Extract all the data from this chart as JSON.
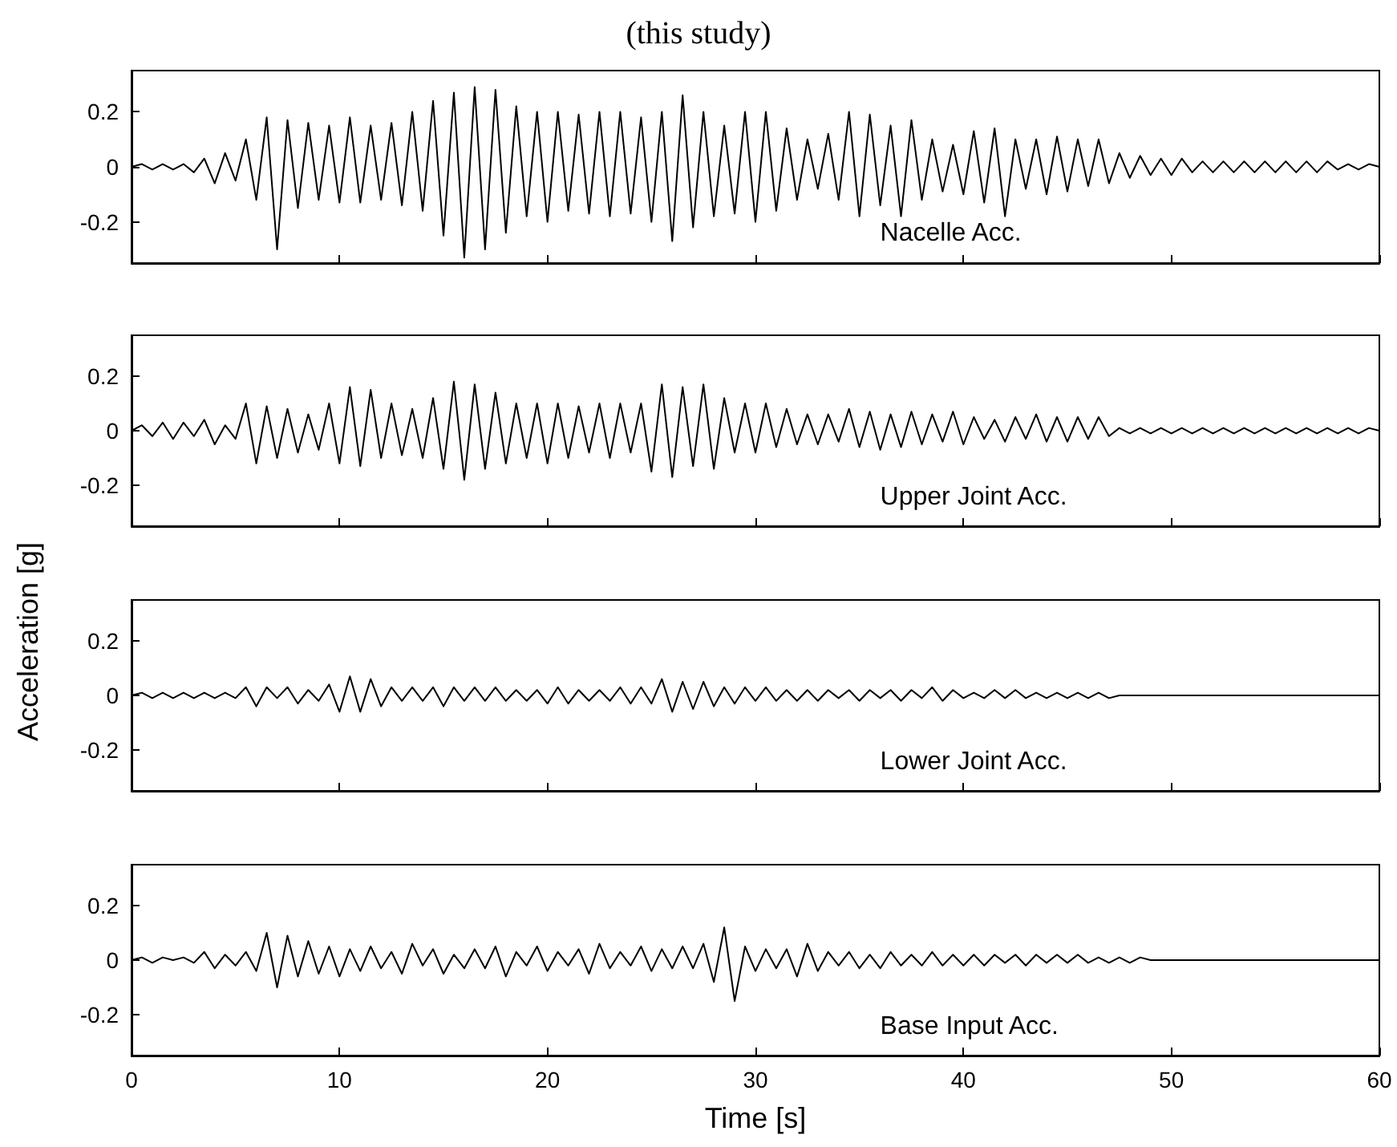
{
  "chart_data": [
    {
      "type": "line",
      "title": "(this study)",
      "annotations": [
        "Nacelle Acc."
      ],
      "xlim": [
        0,
        60
      ],
      "xticks": [
        0,
        10,
        20,
        30,
        40,
        50,
        60
      ],
      "ylim": [
        -0.35,
        0.35
      ],
      "yticks": [
        -0.2,
        0,
        0.2
      ],
      "tick_labels": "y",
      "grid": false,
      "x": [
        0,
        0.5,
        1,
        1.5,
        2,
        2.5,
        3,
        3.5,
        4,
        4.5,
        5,
        5.5,
        6,
        6.5,
        7,
        7.5,
        8,
        8.5,
        9,
        9.5,
        10,
        10.5,
        11,
        11.5,
        12,
        12.5,
        13,
        13.5,
        14,
        14.5,
        15,
        15.5,
        16,
        16.5,
        17,
        17.5,
        18,
        18.5,
        19,
        19.5,
        20,
        20.5,
        21,
        21.5,
        22,
        22.5,
        23,
        23.5,
        24,
        24.5,
        25,
        25.5,
        26,
        26.5,
        27,
        27.5,
        28,
        28.5,
        29,
        29.5,
        30,
        30.5,
        31,
        31.5,
        32,
        32.5,
        33,
        33.5,
        34,
        34.5,
        35,
        35.5,
        36,
        36.5,
        37,
        37.5,
        38,
        38.5,
        39,
        39.5,
        40,
        40.5,
        41,
        41.5,
        42,
        42.5,
        43,
        43.5,
        44,
        44.5,
        45,
        45.5,
        46,
        46.5,
        47,
        47.5,
        48,
        48.5,
        49,
        49.5,
        50,
        50.5,
        51,
        51.5,
        52,
        52.5,
        53,
        53.5,
        54,
        54.5,
        55,
        55.5,
        56,
        56.5,
        57,
        57.5,
        58,
        58.5,
        59,
        59.5,
        60
      ],
      "series": [
        {
          "color": "#000000",
          "values": [
            0,
            0.01,
            -0.01,
            0.01,
            -0.01,
            0.01,
            -0.02,
            0.03,
            -0.06,
            0.05,
            -0.05,
            0.1,
            -0.12,
            0.18,
            -0.3,
            0.17,
            -0.15,
            0.16,
            -0.12,
            0.15,
            -0.13,
            0.18,
            -0.13,
            0.15,
            -0.12,
            0.16,
            -0.14,
            0.2,
            -0.16,
            0.24,
            -0.25,
            0.27,
            -0.33,
            0.29,
            -0.3,
            0.28,
            -0.24,
            0.22,
            -0.18,
            0.2,
            -0.2,
            0.2,
            -0.16,
            0.19,
            -0.17,
            0.2,
            -0.18,
            0.2,
            -0.17,
            0.18,
            -0.2,
            0.2,
            -0.27,
            0.26,
            -0.22,
            0.2,
            -0.18,
            0.15,
            -0.17,
            0.2,
            -0.2,
            0.2,
            -0.16,
            0.14,
            -0.12,
            0.1,
            -0.08,
            0.12,
            -0.12,
            0.2,
            -0.18,
            0.19,
            -0.14,
            0.15,
            -0.18,
            0.17,
            -0.12,
            0.1,
            -0.09,
            0.08,
            -0.1,
            0.13,
            -0.13,
            0.14,
            -0.18,
            0.1,
            -0.08,
            0.1,
            -0.1,
            0.11,
            -0.09,
            0.1,
            -0.07,
            0.1,
            -0.06,
            0.05,
            -0.04,
            0.04,
            -0.03,
            0.03,
            -0.03,
            0.03,
            -0.02,
            0.02,
            -0.02,
            0.02,
            -0.02,
            0.02,
            -0.02,
            0.02,
            -0.02,
            0.02,
            -0.02,
            0.02,
            -0.02,
            0.02,
            -0.01,
            0.01,
            -0.01,
            0.01,
            0
          ]
        }
      ]
    },
    {
      "type": "line",
      "ylabel": "Acceleration [g]",
      "annotations": [
        "Upper Joint Acc."
      ],
      "xlim": [
        0,
        60
      ],
      "xticks": [
        0,
        10,
        20,
        30,
        40,
        50,
        60
      ],
      "ylim": [
        -0.35,
        0.35
      ],
      "yticks": [
        -0.2,
        0,
        0.2
      ],
      "tick_labels": "y",
      "grid": false,
      "x": [
        0,
        0.5,
        1,
        1.5,
        2,
        2.5,
        3,
        3.5,
        4,
        4.5,
        5,
        5.5,
        6,
        6.5,
        7,
        7.5,
        8,
        8.5,
        9,
        9.5,
        10,
        10.5,
        11,
        11.5,
        12,
        12.5,
        13,
        13.5,
        14,
        14.5,
        15,
        15.5,
        16,
        16.5,
        17,
        17.5,
        18,
        18.5,
        19,
        19.5,
        20,
        20.5,
        21,
        21.5,
        22,
        22.5,
        23,
        23.5,
        24,
        24.5,
        25,
        25.5,
        26,
        26.5,
        27,
        27.5,
        28,
        28.5,
        29,
        29.5,
        30,
        30.5,
        31,
        31.5,
        32,
        32.5,
        33,
        33.5,
        34,
        34.5,
        35,
        35.5,
        36,
        36.5,
        37,
        37.5,
        38,
        38.5,
        39,
        39.5,
        40,
        40.5,
        41,
        41.5,
        42,
        42.5,
        43,
        43.5,
        44,
        44.5,
        45,
        45.5,
        46,
        46.5,
        47,
        47.5,
        48,
        48.5,
        49,
        49.5,
        50,
        50.5,
        51,
        51.5,
        52,
        52.5,
        53,
        53.5,
        54,
        54.5,
        55,
        55.5,
        56,
        56.5,
        57,
        57.5,
        58,
        58.5,
        59,
        59.5,
        60
      ],
      "series": [
        {
          "color": "#000000",
          "values": [
            0,
            0.02,
            -0.02,
            0.03,
            -0.03,
            0.03,
            -0.02,
            0.04,
            -0.05,
            0.02,
            -0.03,
            0.1,
            -0.12,
            0.09,
            -0.1,
            0.08,
            -0.08,
            0.06,
            -0.07,
            0.1,
            -0.12,
            0.16,
            -0.13,
            0.15,
            -0.1,
            0.1,
            -0.09,
            0.08,
            -0.1,
            0.12,
            -0.14,
            0.18,
            -0.18,
            0.17,
            -0.14,
            0.14,
            -0.12,
            0.1,
            -0.1,
            0.1,
            -0.12,
            0.1,
            -0.1,
            0.09,
            -0.08,
            0.1,
            -0.1,
            0.1,
            -0.08,
            0.1,
            -0.15,
            0.17,
            -0.17,
            0.16,
            -0.13,
            0.17,
            -0.14,
            0.12,
            -0.08,
            0.1,
            -0.08,
            0.1,
            -0.06,
            0.08,
            -0.05,
            0.06,
            -0.05,
            0.06,
            -0.04,
            0.08,
            -0.06,
            0.07,
            -0.07,
            0.06,
            -0.06,
            0.07,
            -0.05,
            0.06,
            -0.04,
            0.07,
            -0.05,
            0.05,
            -0.03,
            0.04,
            -0.04,
            0.05,
            -0.03,
            0.06,
            -0.04,
            0.05,
            -0.04,
            0.05,
            -0.03,
            0.05,
            -0.02,
            0.01,
            -0.01,
            0.01,
            -0.01,
            0.01,
            -0.01,
            0.01,
            -0.01,
            0.01,
            -0.01,
            0.01,
            -0.01,
            0.01,
            -0.01,
            0.01,
            -0.01,
            0.01,
            -0.01,
            0.01,
            -0.01,
            0.01,
            -0.01,
            0.01,
            -0.01,
            0.01,
            0
          ]
        }
      ]
    },
    {
      "type": "line",
      "annotations": [
        "Lower Joint Acc."
      ],
      "xlim": [
        0,
        60
      ],
      "xticks": [
        0,
        10,
        20,
        30,
        40,
        50,
        60
      ],
      "ylim": [
        -0.35,
        0.35
      ],
      "yticks": [
        -0.2,
        0,
        0.2
      ],
      "tick_labels": "y",
      "grid": false,
      "x": [
        0,
        0.5,
        1,
        1.5,
        2,
        2.5,
        3,
        3.5,
        4,
        4.5,
        5,
        5.5,
        6,
        6.5,
        7,
        7.5,
        8,
        8.5,
        9,
        9.5,
        10,
        10.5,
        11,
        11.5,
        12,
        12.5,
        13,
        13.5,
        14,
        14.5,
        15,
        15.5,
        16,
        16.5,
        17,
        17.5,
        18,
        18.5,
        19,
        19.5,
        20,
        20.5,
        21,
        21.5,
        22,
        22.5,
        23,
        23.5,
        24,
        24.5,
        25,
        25.5,
        26,
        26.5,
        27,
        27.5,
        28,
        28.5,
        29,
        29.5,
        30,
        30.5,
        31,
        31.5,
        32,
        32.5,
        33,
        33.5,
        34,
        34.5,
        35,
        35.5,
        36,
        36.5,
        37,
        37.5,
        38,
        38.5,
        39,
        39.5,
        40,
        40.5,
        41,
        41.5,
        42,
        42.5,
        43,
        43.5,
        44,
        44.5,
        45,
        45.5,
        46,
        46.5,
        47,
        47.5,
        48,
        48.5,
        49,
        49.5,
        50,
        50.5,
        51,
        51.5,
        52,
        52.5,
        53,
        53.5,
        54,
        54.5,
        55,
        55.5,
        56,
        56.5,
        57,
        57.5,
        58,
        58.5,
        59,
        59.5,
        60
      ],
      "series": [
        {
          "color": "#000000",
          "values": [
            0,
            0.01,
            -0.01,
            0.01,
            -0.01,
            0.01,
            -0.01,
            0.01,
            -0.01,
            0.01,
            -0.01,
            0.03,
            -0.04,
            0.03,
            -0.01,
            0.03,
            -0.03,
            0.02,
            -0.02,
            0.04,
            -0.06,
            0.07,
            -0.06,
            0.06,
            -0.04,
            0.03,
            -0.02,
            0.03,
            -0.02,
            0.03,
            -0.04,
            0.03,
            -0.02,
            0.03,
            -0.02,
            0.03,
            -0.02,
            0.02,
            -0.02,
            0.02,
            -0.03,
            0.03,
            -0.03,
            0.02,
            -0.02,
            0.02,
            -0.02,
            0.03,
            -0.03,
            0.03,
            -0.03,
            0.06,
            -0.06,
            0.05,
            -0.05,
            0.05,
            -0.04,
            0.03,
            -0.03,
            0.03,
            -0.02,
            0.03,
            -0.02,
            0.02,
            -0.02,
            0.02,
            -0.02,
            0.02,
            -0.01,
            0.02,
            -0.02,
            0.02,
            -0.01,
            0.02,
            -0.02,
            0.02,
            -0.01,
            0.03,
            -0.02,
            0.02,
            -0.01,
            0.01,
            -0.01,
            0.02,
            -0.01,
            0.02,
            -0.01,
            0.01,
            -0.01,
            0.01,
            -0.01,
            0.01,
            -0.01,
            0.01,
            -0.01,
            0,
            0,
            0,
            0,
            0,
            0,
            0,
            0,
            0,
            0,
            0,
            0,
            0,
            0,
            0,
            0,
            0,
            0,
            0,
            0,
            0,
            0,
            0,
            0,
            0,
            0
          ]
        }
      ]
    },
    {
      "type": "line",
      "xlabel": "Time [s]",
      "annotations": [
        "Base Input Acc."
      ],
      "xlim": [
        0,
        60
      ],
      "xticks": [
        0,
        10,
        20,
        30,
        40,
        50,
        60
      ],
      "ylim": [
        -0.35,
        0.35
      ],
      "yticks": [
        -0.2,
        0,
        0.2
      ],
      "grid": false,
      "x": [
        0,
        0.5,
        1,
        1.5,
        2,
        2.5,
        3,
        3.5,
        4,
        4.5,
        5,
        5.5,
        6,
        6.5,
        7,
        7.5,
        8,
        8.5,
        9,
        9.5,
        10,
        10.5,
        11,
        11.5,
        12,
        12.5,
        13,
        13.5,
        14,
        14.5,
        15,
        15.5,
        16,
        16.5,
        17,
        17.5,
        18,
        18.5,
        19,
        19.5,
        20,
        20.5,
        21,
        21.5,
        22,
        22.5,
        23,
        23.5,
        24,
        24.5,
        25,
        25.5,
        26,
        26.5,
        27,
        27.5,
        28,
        28.5,
        29,
        29.5,
        30,
        30.5,
        31,
        31.5,
        32,
        32.5,
        33,
        33.5,
        34,
        34.5,
        35,
        35.5,
        36,
        36.5,
        37,
        37.5,
        38,
        38.5,
        39,
        39.5,
        40,
        40.5,
        41,
        41.5,
        42,
        42.5,
        43,
        43.5,
        44,
        44.5,
        45,
        45.5,
        46,
        46.5,
        47,
        47.5,
        48,
        48.5,
        49,
        49.5,
        50,
        50.5,
        51,
        51.5,
        52,
        52.5,
        53,
        53.5,
        54,
        54.5,
        55,
        55.5,
        56,
        56.5,
        57,
        57.5,
        58,
        58.5,
        59,
        59.5,
        60
      ],
      "series": [
        {
          "color": "#000000",
          "values": [
            0,
            0.01,
            -0.01,
            0.01,
            0,
            0.01,
            -0.01,
            0.03,
            -0.03,
            0.02,
            -0.02,
            0.03,
            -0.04,
            0.1,
            -0.1,
            0.09,
            -0.06,
            0.07,
            -0.05,
            0.05,
            -0.06,
            0.04,
            -0.04,
            0.05,
            -0.03,
            0.03,
            -0.05,
            0.06,
            -0.02,
            0.04,
            -0.05,
            0.02,
            -0.03,
            0.04,
            -0.03,
            0.05,
            -0.06,
            0.03,
            -0.02,
            0.05,
            -0.04,
            0.03,
            -0.02,
            0.04,
            -0.05,
            0.06,
            -0.03,
            0.03,
            -0.02,
            0.05,
            -0.04,
            0.04,
            -0.03,
            0.05,
            -0.03,
            0.06,
            -0.08,
            0.12,
            -0.15,
            0.05,
            -0.04,
            0.04,
            -0.03,
            0.04,
            -0.06,
            0.06,
            -0.04,
            0.03,
            -0.02,
            0.03,
            -0.03,
            0.02,
            -0.03,
            0.03,
            -0.02,
            0.02,
            -0.02,
            0.03,
            -0.02,
            0.02,
            -0.02,
            0.02,
            -0.02,
            0.02,
            -0.01,
            0.02,
            -0.02,
            0.02,
            -0.01,
            0.02,
            -0.01,
            0.02,
            -0.01,
            0.01,
            -0.01,
            0.01,
            -0.01,
            0.01,
            0,
            0,
            0,
            0,
            0,
            0,
            0,
            0,
            0,
            0,
            0,
            0,
            0,
            0,
            0,
            0,
            0,
            0,
            0,
            0,
            0,
            0,
            0
          ]
        }
      ]
    }
  ]
}
